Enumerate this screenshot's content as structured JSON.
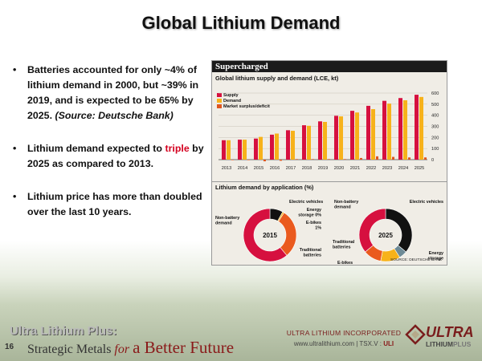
{
  "slide": {
    "title": "Global Lithium Demand",
    "page_number": "16",
    "bullets": [
      {
        "parts": [
          {
            "text": "Batteries accounted for only ~4% of lithium demand in 2000, but ~39% in 2019, and is expected to be 65% by 2025. ",
            "style": ""
          },
          {
            "text": "(Source: Deutsche Bank)",
            "style": "ital"
          }
        ]
      },
      {
        "parts": [
          {
            "text": "Lithium demand expected to ",
            "style": ""
          },
          {
            "text": "triple",
            "style": "red"
          },
          {
            "text": " by 2025 as compared to 2013.",
            "style": ""
          }
        ]
      },
      {
        "parts": [
          {
            "text": "Lithium price has more than doubled over the last 10 years.",
            "style": ""
          }
        ]
      }
    ],
    "bullet_glyph": "•"
  },
  "figure": {
    "header": "Supercharged",
    "subtitle1": "Global lithium supply and demand (LCE, kt)",
    "subtitle2": "Lithium demand by application (%)",
    "source": "SOURCE: DEUTSCHE BANK",
    "donut_2015": {
      "center": "2015",
      "labels": {
        "non_battery": "Non-battery demand",
        "ev": "Electric vehicles",
        "storage": "Energy storage 0%",
        "ebikes": "E-bikes 1%",
        "traditional": "Traditional batteries"
      }
    },
    "donut_2025": {
      "center": "2025",
      "labels": {
        "non_battery": "Non-battery demand",
        "ev": "Electric vehicles",
        "storage": "Energy storage",
        "ebikes": "E-bikes",
        "traditional": "Traditional batteries"
      }
    }
  },
  "colors": {
    "supply": "#d6103f",
    "demand": "#f7b21a",
    "surplus": "#e0561e",
    "ev": "#111111",
    "storage": "#6d8a96",
    "ebikes": "#f7b21a",
    "traditional": "#ea5a1e",
    "non_battery": "#d6103f",
    "accent": "#d4001f"
  },
  "chart_data": [
    {
      "type": "bar",
      "categories": [
        "2013",
        "2014",
        "2015",
        "2016",
        "2017",
        "2018",
        "2019",
        "2020",
        "2021",
        "2022",
        "2023",
        "2024",
        "2025"
      ],
      "series": [
        {
          "name": "Supply",
          "values": [
            175,
            180,
            190,
            225,
            265,
            310,
            345,
            395,
            440,
            485,
            530,
            555,
            585
          ]
        },
        {
          "name": "Demand",
          "values": [
            175,
            180,
            205,
            235,
            260,
            305,
            340,
            390,
            425,
            455,
            505,
            535,
            565
          ]
        },
        {
          "name": "Market surplus/deficit",
          "values": [
            0,
            0,
            -15,
            -10,
            5,
            5,
            5,
            5,
            15,
            30,
            25,
            20,
            20
          ]
        }
      ],
      "ylim": [
        0,
        600
      ],
      "yticks": [
        "0",
        "100",
        "200",
        "300",
        "400",
        "500",
        "600"
      ],
      "legend_position": "top-left",
      "grid": true
    },
    {
      "type": "pie",
      "title": "2015",
      "categories": [
        "Electric vehicles",
        "Energy storage",
        "E-bikes",
        "Traditional batteries",
        "Non-battery demand"
      ],
      "values": [
        8,
        0,
        1,
        30,
        61
      ]
    },
    {
      "type": "pie",
      "title": "2025",
      "categories": [
        "Electric vehicles",
        "Energy storage",
        "E-bikes",
        "Traditional batteries",
        "Non-battery demand"
      ],
      "values": [
        36,
        5,
        12,
        11,
        36
      ]
    }
  ],
  "footer": {
    "brand_line1": "Ultra Lithium Plus:",
    "brand_line2a": "Strategic Metals ",
    "brand_for": "for",
    "brand_line2b": "a Better Future",
    "company": "ULTRA LITHIUM INCORPORATED",
    "website": "www.ultralithium.com",
    "sep1": "|",
    "exchange": "TSX.V :",
    "ticker": "ULI",
    "logo_top": "ULTRA",
    "logo_bottom_a": "LITHIUM",
    "logo_bottom_b": "PLUS"
  }
}
